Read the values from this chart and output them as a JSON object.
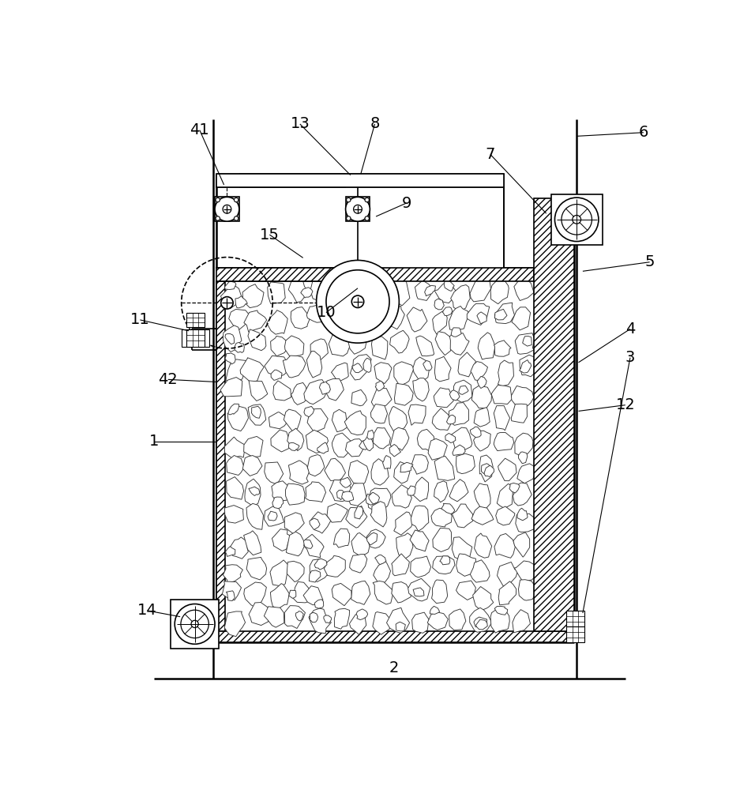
{
  "bg": "#ffffff",
  "lc": "#000000",
  "fw": 9.56,
  "fh": 10.0,
  "dpi": 100,
  "annotations": [
    [
      "41",
      170,
      58,
      210,
      148
    ],
    [
      "13",
      335,
      48,
      418,
      132
    ],
    [
      "8",
      458,
      48,
      435,
      130
    ],
    [
      "9",
      510,
      178,
      460,
      200
    ],
    [
      "7",
      648,
      98,
      740,
      195
    ],
    [
      "6",
      900,
      62,
      790,
      68
    ],
    [
      "5",
      910,
      275,
      800,
      290
    ],
    [
      "4",
      878,
      385,
      793,
      440
    ],
    [
      "15",
      285,
      230,
      340,
      268
    ],
    [
      "10",
      378,
      358,
      430,
      318
    ],
    [
      "11",
      72,
      370,
      152,
      388
    ],
    [
      "42",
      118,
      468,
      197,
      472
    ],
    [
      "1",
      95,
      570,
      197,
      570
    ],
    [
      "12",
      870,
      510,
      793,
      520
    ],
    [
      "3",
      878,
      432,
      800,
      852
    ],
    [
      "2",
      490,
      942,
      490,
      936
    ],
    [
      "14",
      84,
      848,
      138,
      858
    ]
  ]
}
